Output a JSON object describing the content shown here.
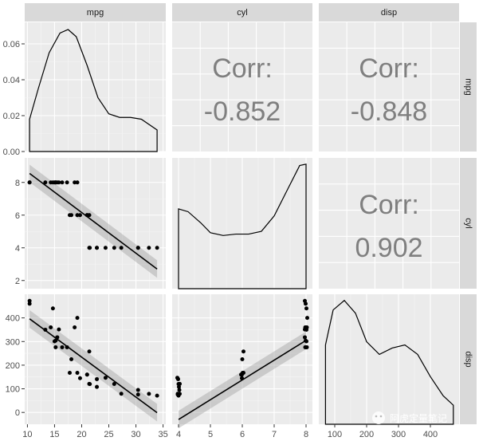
{
  "chart_data": {
    "type": "scatter",
    "variables": [
      "mpg",
      "cyl",
      "disp"
    ],
    "axes": {
      "mpg_x": {
        "ticks": [
          10,
          15,
          20,
          25,
          30,
          35
        ],
        "range": [
          9.5,
          35.5
        ]
      },
      "cyl_x": {
        "ticks": [
          4,
          5,
          6,
          7,
          8
        ],
        "range": [
          3.8,
          8.2
        ]
      },
      "disp_x": {
        "ticks": [
          100,
          200,
          300,
          400
        ],
        "range": [
          50,
          490
        ]
      },
      "density_y": {
        "ticks": [
          "0.00",
          "0.02",
          "0.04",
          "0.06"
        ],
        "range": [
          0,
          0.072
        ]
      },
      "cyl_y": {
        "ticks": [
          2,
          4,
          6,
          8
        ],
        "range": [
          1.5,
          9.5
        ]
      },
      "disp_y": {
        "ticks": [
          0,
          100,
          200,
          300,
          400
        ],
        "range": [
          -50,
          500
        ]
      }
    },
    "correlations": [
      {
        "pair": [
          "mpg",
          "cyl"
        ],
        "label": "Corr:",
        "value": "-0.852"
      },
      {
        "pair": [
          "mpg",
          "disp"
        ],
        "label": "Corr:",
        "value": "-0.848"
      },
      {
        "pair": [
          "cyl",
          "disp"
        ],
        "label": "Corr:",
        "value": "0.902"
      }
    ],
    "density_mpg": {
      "x": [
        10.4,
        12,
        14,
        16,
        17.5,
        19,
        21,
        23,
        25,
        27,
        29,
        31,
        33.9
      ],
      "y": [
        0.018,
        0.035,
        0.055,
        0.066,
        0.068,
        0.064,
        0.048,
        0.03,
        0.021,
        0.019,
        0.019,
        0.018,
        0.012
      ]
    },
    "density_cyl": {
      "x": [
        4,
        4.3,
        4.7,
        5,
        5.4,
        5.8,
        6.2,
        6.6,
        7,
        7.4,
        7.8,
        8
      ],
      "y": [
        0.57,
        0.55,
        0.47,
        0.4,
        0.38,
        0.39,
        0.39,
        0.41,
        0.52,
        0.7,
        0.88,
        0.89
      ]
    },
    "density_disp": {
      "x": [
        71,
        95,
        130,
        165,
        200,
        240,
        280,
        320,
        360,
        400,
        440,
        472
      ],
      "y": [
        0.0025,
        0.0036,
        0.0039,
        0.0035,
        0.0026,
        0.0022,
        0.0024,
        0.0025,
        0.0022,
        0.0015,
        0.0009,
        0.0006
      ]
    },
    "mpg_cyl": {
      "points": [
        [
          21,
          6
        ],
        [
          21,
          6
        ],
        [
          22.8,
          4
        ],
        [
          21.4,
          6
        ],
        [
          18.7,
          8
        ],
        [
          18.1,
          6
        ],
        [
          14.3,
          8
        ],
        [
          24.4,
          4
        ],
        [
          22.8,
          4
        ],
        [
          19.2,
          6
        ],
        [
          17.8,
          6
        ],
        [
          16.4,
          8
        ],
        [
          17.3,
          8
        ],
        [
          15.2,
          8
        ],
        [
          10.4,
          8
        ],
        [
          10.4,
          8
        ],
        [
          14.7,
          8
        ],
        [
          32.4,
          4
        ],
        [
          30.4,
          4
        ],
        [
          33.9,
          4
        ],
        [
          21.5,
          4
        ],
        [
          15.5,
          8
        ],
        [
          15.2,
          8
        ],
        [
          13.3,
          8
        ],
        [
          19.2,
          8
        ],
        [
          27.3,
          4
        ],
        [
          26,
          4
        ],
        [
          30.4,
          4
        ],
        [
          15.8,
          8
        ],
        [
          19.7,
          6
        ],
        [
          15,
          8
        ],
        [
          21.4,
          4
        ]
      ],
      "fit": [
        [
          10.4,
          8.55
        ],
        [
          33.9,
          2.7
        ]
      ]
    },
    "mpg_disp": {
      "points": [
        [
          21,
          160
        ],
        [
          21,
          160
        ],
        [
          22.8,
          108
        ],
        [
          21.4,
          258
        ],
        [
          18.7,
          360
        ],
        [
          18.1,
          225
        ],
        [
          14.3,
          360
        ],
        [
          24.4,
          146.7
        ],
        [
          22.8,
          140.8
        ],
        [
          19.2,
          167.6
        ],
        [
          17.8,
          167.6
        ],
        [
          16.4,
          275.8
        ],
        [
          17.3,
          275.8
        ],
        [
          15.2,
          275.8
        ],
        [
          10.4,
          472
        ],
        [
          10.4,
          460
        ],
        [
          14.7,
          440
        ],
        [
          32.4,
          78.7
        ],
        [
          30.4,
          75.7
        ],
        [
          33.9,
          71.1
        ],
        [
          21.5,
          120.1
        ],
        [
          15.5,
          318
        ],
        [
          15.2,
          304
        ],
        [
          13.3,
          350
        ],
        [
          19.2,
          400
        ],
        [
          27.3,
          79
        ],
        [
          26,
          120.3
        ],
        [
          30.4,
          95.1
        ],
        [
          15.8,
          351
        ],
        [
          19.7,
          145
        ],
        [
          15,
          301
        ],
        [
          21.4,
          121
        ]
      ],
      "fit": [
        [
          10.4,
          396
        ],
        [
          33.9,
          -1
        ]
      ]
    },
    "cyl_disp": {
      "points": [
        [
          6,
          160
        ],
        [
          6,
          160
        ],
        [
          4,
          108
        ],
        [
          6,
          258
        ],
        [
          8,
          360
        ],
        [
          6,
          225
        ],
        [
          8,
          360
        ],
        [
          4,
          146.7
        ],
        [
          4,
          140.8
        ],
        [
          6,
          167.6
        ],
        [
          6,
          167.6
        ],
        [
          8,
          275.8
        ],
        [
          8,
          275.8
        ],
        [
          8,
          275.8
        ],
        [
          8,
          472
        ],
        [
          8,
          460
        ],
        [
          8,
          440
        ],
        [
          4,
          78.7
        ],
        [
          4,
          75.7
        ],
        [
          4,
          71.1
        ],
        [
          4,
          120.1
        ],
        [
          8,
          318
        ],
        [
          8,
          304
        ],
        [
          8,
          350
        ],
        [
          8,
          400
        ],
        [
          4,
          79
        ],
        [
          4,
          120.3
        ],
        [
          4,
          95.1
        ],
        [
          8,
          351
        ],
        [
          6,
          145
        ],
        [
          8,
          301
        ],
        [
          4,
          121
        ]
      ],
      "fit": [
        [
          4,
          -30
        ],
        [
          8,
          305
        ]
      ]
    }
  },
  "watermark": "阿虎定量笔记"
}
